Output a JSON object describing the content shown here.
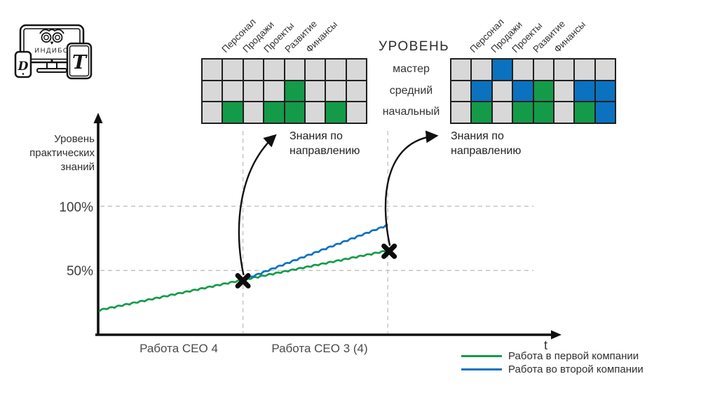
{
  "colors": {
    "green": "#149b4a",
    "blue": "#0b72c0",
    "cell_gray": "#d8d8d8",
    "grid_line": "#1f1f1f",
    "axis": "#101010",
    "dash": "#c3c3c3"
  },
  "logo": {
    "brand": "ИНДИБО",
    "phone_letter": "D",
    "tablet_letter": "T"
  },
  "matrix_columns": [
    "Персонал",
    "Продажи",
    "Проекты",
    "Развитие",
    "Финансы"
  ],
  "levels": {
    "header": "УРОВЕНЬ",
    "rows": [
      "мастер",
      "средний",
      "начальный"
    ]
  },
  "grids": [
    {
      "id": "knowledge-matrix-company1",
      "cells": [
        [
          0,
          0,
          0,
          0,
          0,
          0,
          0,
          0
        ],
        [
          0,
          0,
          0,
          0,
          1,
          0,
          0,
          0
        ],
        [
          0,
          1,
          0,
          1,
          1,
          0,
          1,
          0
        ]
      ],
      "caption": [
        "Знания по",
        "направлению"
      ]
    },
    {
      "id": "knowledge-matrix-company2",
      "cells": [
        [
          0,
          0,
          2,
          0,
          0,
          0,
          0,
          0
        ],
        [
          0,
          2,
          0,
          2,
          1,
          0,
          2,
          2
        ],
        [
          0,
          1,
          0,
          1,
          1,
          0,
          1,
          2
        ]
      ],
      "caption": [
        "Знания по",
        "направлению"
      ]
    }
  ],
  "chart_data": {
    "type": "line",
    "ylabel_lines": [
      "Уровень",
      "практических",
      "знаний"
    ],
    "yticks": [
      {
        "label": "100%",
        "percent": 100
      },
      {
        "label": "50%",
        "percent": 50
      }
    ],
    "x_axis_label": "t",
    "phases": [
      {
        "label": "Работа CEO 4"
      },
      {
        "label": "Работа CEO 3 (4)"
      }
    ],
    "series": [
      {
        "name": "Работа в первой компании",
        "color": "#149b4a",
        "t": [
          0.003,
          0.313,
          0.629
        ],
        "percent": [
          18.5,
          42,
          65
        ]
      },
      {
        "name": "Работа во второй компании",
        "color": "#0b72c0",
        "t": [
          0.321,
          0.625
        ],
        "percent": [
          43,
          84.5
        ]
      }
    ],
    "markers": [
      {
        "t": 0.313,
        "percent": 42
      },
      {
        "t": 0.629,
        "percent": 65
      }
    ],
    "vertical_guides_t": [
      0.313,
      0.626
    ],
    "legend": [
      {
        "label": "Работа в первой компании",
        "color": "#149b4a"
      },
      {
        "label": "Работа во второй компании",
        "color": "#0b72c0"
      }
    ]
  }
}
